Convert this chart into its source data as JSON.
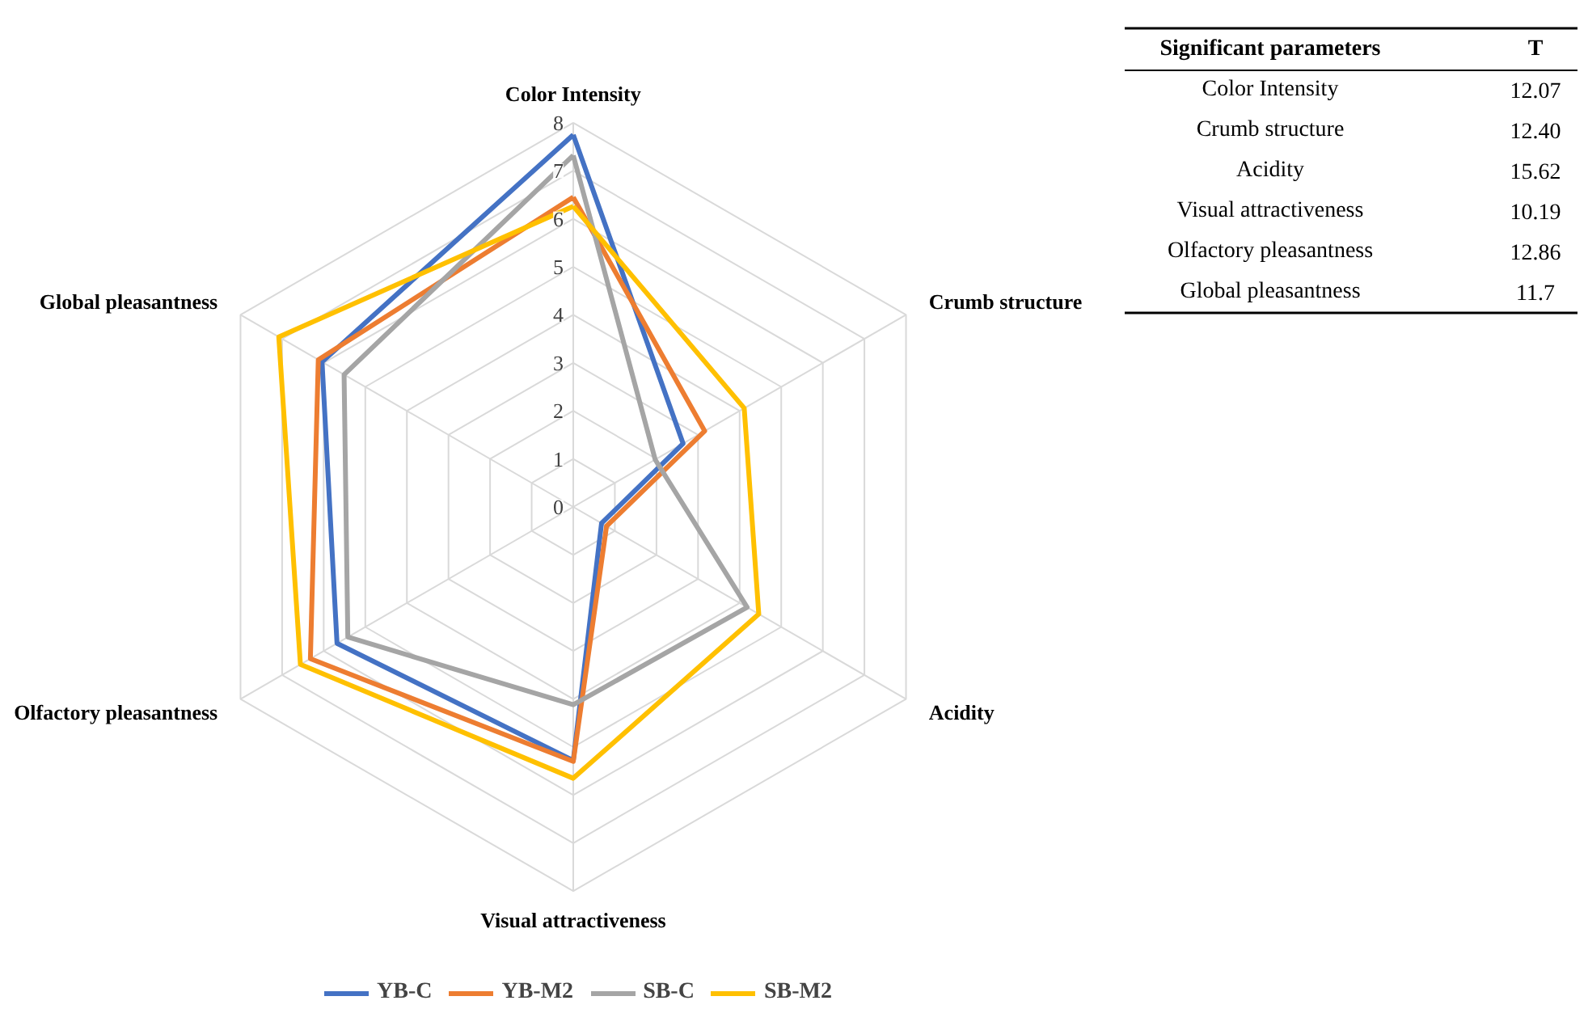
{
  "chart_data": [
    {
      "type": "radar",
      "categories": [
        "Color Intensity",
        "Crumb structure",
        "Acidity",
        "Visual attractiveness",
        "Olfactory pleasantness",
        "Global pleasantness"
      ],
      "ylim": [
        0,
        8
      ],
      "yticks": [
        0,
        1,
        2,
        3,
        4,
        5,
        6,
        7,
        8
      ],
      "grid": true,
      "legend": "bottom",
      "line_style": "solid",
      "marker": "none",
      "series": [
        {
          "name": "YB-C",
          "color": "#4472c4",
          "values": [
            7.75,
            2.64,
            0.68,
            5.28,
            5.68,
            6.04
          ]
        },
        {
          "name": "YB-M2",
          "color": "#ed7d31",
          "values": [
            6.45,
            3.16,
            0.8,
            5.3,
            6.32,
            6.13
          ]
        },
        {
          "name": "SB-C",
          "color": "#a5a5a5",
          "values": [
            7.32,
            1.97,
            4.18,
            4.12,
            5.42,
            5.51
          ]
        },
        {
          "name": "SB-M2",
          "color": "#ffc000",
          "values": [
            6.26,
            4.11,
            4.46,
            5.65,
            6.56,
            7.08
          ]
        }
      ]
    },
    {
      "type": "other",
      "annotations": [
        "Significant parameters",
        "T"
      ],
      "categories": [
        "Color Intensity",
        "Crumb structure",
        "Acidity",
        "Visual attractiveness",
        "Olfactory pleasantness",
        "Global pleasantness"
      ],
      "value_labels": [
        "12.07",
        "12.40",
        "15.62",
        "10.19",
        "12.86",
        "11.7"
      ]
    }
  ]
}
